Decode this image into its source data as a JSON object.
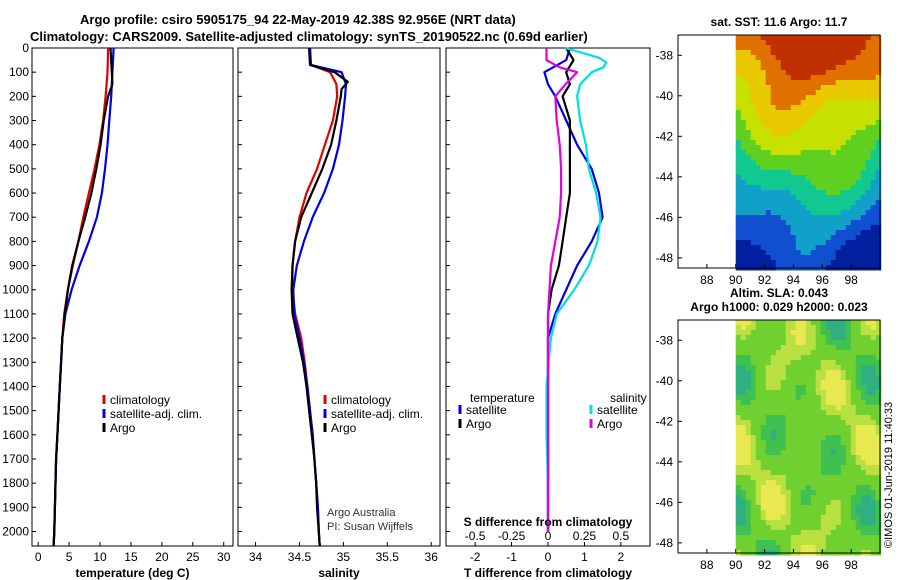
{
  "title_line1": "Argo profile: csiro 5905175_94 22-May-2019 42.38S 92.956E (NRT data)",
  "title_line2": "Climatology: CARS2009. Satellite-adjusted climatology: synTS_20190522.nc (0.69d earlier)",
  "credit": "Argo Australia",
  "pi": "PI: Susan Wijffels",
  "watermark": "©IMOS 01-Jun-2019 11:40:33",
  "map_sst_title": "sat. SST: 11.6 Argo: 11.7",
  "map_sla_title1": "Altim. SLA: 0.043",
  "map_sla_title2": "Argo h1000: 0.029 h2000: 0.023",
  "colors": {
    "clim": "#e00000",
    "sat": "#0000e0",
    "argo": "#000000",
    "sal_sat": "#00e0e0",
    "sal_diff": "#e000e0"
  },
  "chart_data": [
    {
      "type": "line",
      "panel": "temperature",
      "xlabel": "temperature (deg C)",
      "ylabel": "depth",
      "xlim": [
        -1,
        31.5
      ],
      "ylim": [
        2060,
        0
      ],
      "xticks": [
        0,
        5,
        10,
        15,
        20,
        25,
        30
      ],
      "yticks": [
        0,
        100,
        200,
        300,
        400,
        500,
        600,
        700,
        800,
        900,
        1000,
        1100,
        1200,
        1300,
        1400,
        1500,
        1600,
        1700,
        1800,
        1900,
        2000
      ],
      "legend": [
        "climatology",
        "satellite-adj. clim.",
        "Argo"
      ],
      "series": [
        {
          "name": "climatology",
          "color": "clim",
          "depth": [
            0,
            100,
            200,
            300,
            400,
            500,
            600,
            700,
            800,
            900,
            1000,
            1100,
            1200,
            1300,
            1400,
            1500,
            1600,
            1700,
            1800,
            1900,
            2000,
            2060
          ],
          "values": [
            11.3,
            11.2,
            10.9,
            10.5,
            9.9,
            9.1,
            8.2,
            7.3,
            6.5,
            5.6,
            4.8,
            4.2,
            3.9,
            3.7,
            3.5,
            3.3,
            3.1,
            2.9,
            2.8,
            2.7,
            2.6,
            2.5
          ]
        },
        {
          "name": "satellite-adj. clim.",
          "color": "sat",
          "depth": [
            0,
            100,
            200,
            300,
            400,
            500,
            600,
            700,
            800,
            900,
            1000,
            1100,
            1200,
            1300,
            1400,
            1500,
            1600,
            1700,
            1800,
            1900,
            2000,
            2060
          ],
          "values": [
            12.2,
            12.0,
            11.8,
            11.5,
            11.2,
            10.8,
            10.3,
            9.5,
            8.2,
            6.7,
            5.4,
            4.4,
            3.9,
            3.7,
            3.5,
            3.3,
            3.1,
            2.9,
            2.8,
            2.7,
            2.6,
            2.5
          ]
        },
        {
          "name": "Argo",
          "color": "argo",
          "depth": [
            0,
            100,
            150,
            200,
            300,
            400,
            500,
            600,
            700,
            800,
            900,
            1000,
            1100,
            1200,
            1300,
            1400,
            1500,
            1600,
            1700,
            1800,
            1900,
            2000,
            2060
          ],
          "values": [
            11.7,
            11.9,
            12.0,
            11.3,
            10.6,
            10.1,
            9.4,
            8.6,
            7.6,
            6.5,
            5.5,
            4.8,
            4.3,
            3.9,
            3.7,
            3.5,
            3.3,
            3.1,
            2.9,
            2.8,
            2.7,
            2.6,
            2.5
          ]
        }
      ]
    },
    {
      "type": "line",
      "panel": "salinity",
      "xlabel": "salinity",
      "xlim": [
        33.8,
        36.1
      ],
      "ylim": [
        2060,
        0
      ],
      "xticks": [
        34,
        34.5,
        35,
        35.5,
        36
      ],
      "legend": [
        "climatology",
        "satellite-adj. clim.",
        "Argo"
      ],
      "series": [
        {
          "name": "climatology",
          "color": "clim",
          "depth": [
            0,
            70,
            100,
            150,
            200,
            300,
            400,
            500,
            600,
            700,
            800,
            900,
            1000,
            1100,
            1200,
            1300,
            1400,
            1500,
            1600,
            1700,
            1800,
            1900,
            2000,
            2060
          ],
          "values": [
            34.62,
            34.63,
            34.85,
            34.92,
            34.93,
            34.88,
            34.79,
            34.7,
            34.58,
            34.5,
            34.45,
            34.42,
            34.42,
            34.45,
            34.52,
            34.56,
            34.59,
            34.62,
            34.65,
            34.67,
            34.69,
            34.71,
            34.72,
            34.73
          ]
        },
        {
          "name": "satellite-adj. clim.",
          "color": "sat",
          "depth": [
            0,
            70,
            100,
            150,
            200,
            300,
            400,
            500,
            600,
            700,
            800,
            900,
            1000,
            1100,
            1200,
            1300,
            1400,
            1500,
            1600,
            1700,
            1800,
            1900,
            2000,
            2060
          ],
          "values": [
            34.62,
            34.63,
            34.98,
            35.03,
            35.02,
            34.99,
            34.95,
            34.88,
            34.78,
            34.65,
            34.55,
            34.47,
            34.43,
            34.44,
            34.5,
            34.55,
            34.59,
            34.62,
            34.65,
            34.67,
            34.69,
            34.71,
            34.72,
            34.73
          ]
        },
        {
          "name": "Argo",
          "color": "argo",
          "depth": [
            0,
            70,
            100,
            140,
            170,
            200,
            300,
            400,
            500,
            600,
            700,
            800,
            900,
            1000,
            1100,
            1200,
            1300,
            1400,
            1500,
            1600,
            1700,
            1800,
            1900,
            2000,
            2060
          ],
          "values": [
            34.61,
            34.62,
            34.9,
            35.05,
            34.98,
            34.97,
            34.92,
            34.86,
            34.76,
            34.64,
            34.52,
            34.45,
            34.42,
            34.41,
            34.42,
            34.48,
            34.54,
            34.58,
            34.61,
            34.64,
            34.67,
            34.69,
            34.7,
            34.72,
            34.73
          ]
        }
      ]
    },
    {
      "type": "line",
      "panel": "difference",
      "xlabel": "T difference from climatology",
      "xlabel_top": "S difference from climatology",
      "xlim": [
        -2.8,
        2.8
      ],
      "ylim": [
        2060,
        0
      ],
      "xticks": [
        -2,
        -1,
        0,
        1,
        2
      ],
      "xticks_top": [
        -0.5,
        -0.25,
        0,
        0.25,
        0.5
      ],
      "legend_left_title": "temperature",
      "legend_right_title": "salinity",
      "legend": [
        "satellite",
        "Argo",
        "satellite",
        "Argo"
      ],
      "series": [
        {
          "name": "T satellite",
          "color": "sat",
          "depth": [
            0,
            50,
            100,
            150,
            200,
            300,
            400,
            500,
            600,
            700,
            800,
            900,
            1000,
            1100,
            1200,
            1400,
            1600,
            1800,
            2000
          ],
          "values": [
            0.6,
            0.5,
            -0.1,
            0.0,
            0.2,
            0.5,
            0.8,
            1.2,
            1.4,
            1.5,
            1.2,
            0.8,
            0.5,
            0.2,
            0.0,
            0.0,
            0.0,
            0.0,
            0.0
          ]
        },
        {
          "name": "T Argo",
          "color": "argo",
          "depth": [
            0,
            50,
            100,
            150,
            200,
            300,
            400,
            500,
            600,
            700,
            800,
            900,
            1000,
            1100,
            1200,
            1400,
            1600,
            1800,
            2000
          ],
          "values": [
            0.5,
            0.7,
            0.5,
            0.6,
            0.4,
            0.6,
            0.6,
            0.6,
            0.6,
            0.5,
            0.4,
            0.3,
            0.1,
            0.0,
            0.0,
            0.0,
            0.0,
            0.0,
            0.0
          ]
        },
        {
          "name": "S satellite",
          "color": "sal_sat",
          "depth": [
            0,
            40,
            60,
            80,
            100,
            150,
            200,
            300,
            400,
            500,
            600,
            700,
            800,
            900,
            1000,
            1100,
            1200,
            1400,
            1600,
            1800,
            2000
          ],
          "values": [
            0.12,
            0.35,
            0.4,
            0.38,
            0.3,
            0.22,
            0.2,
            0.22,
            0.26,
            0.28,
            0.33,
            0.36,
            0.34,
            0.28,
            0.18,
            0.06,
            0.02,
            -0.01,
            -0.01,
            0.0,
            0.0
          ]
        },
        {
          "name": "S Argo",
          "color": "sal_diff",
          "depth": [
            0,
            50,
            80,
            100,
            150,
            200,
            300,
            400,
            500,
            600,
            700,
            800,
            900,
            1000,
            1100,
            1200,
            1400,
            1600,
            1800,
            2000
          ],
          "values": [
            -0.01,
            -0.01,
            0.08,
            0.2,
            0.12,
            0.05,
            0.06,
            0.08,
            0.09,
            0.09,
            0.08,
            0.05,
            0.02,
            0.01,
            0.0,
            0.0,
            0.0,
            0.0,
            0.0,
            0.0
          ]
        }
      ]
    },
    {
      "type": "heatmap",
      "panel": "sst_map",
      "title": "sat. SST: 11.6 Argo: 11.7",
      "xlim": [
        86,
        100
      ],
      "ylim": [
        -48.5,
        -37
      ],
      "xticks": [
        88,
        90,
        92,
        94,
        96,
        98
      ],
      "yticks": [
        -38,
        -40,
        -42,
        -44,
        -46,
        -48
      ]
    },
    {
      "type": "heatmap",
      "panel": "sla_map",
      "title": "Altim. SLA: 0.043",
      "xlim": [
        86,
        100
      ],
      "ylim": [
        -48.5,
        -37
      ],
      "xticks": [
        88,
        90,
        92,
        94,
        96,
        98
      ],
      "yticks": [
        -38,
        -40,
        -42,
        -44,
        -46,
        -48
      ]
    }
  ]
}
